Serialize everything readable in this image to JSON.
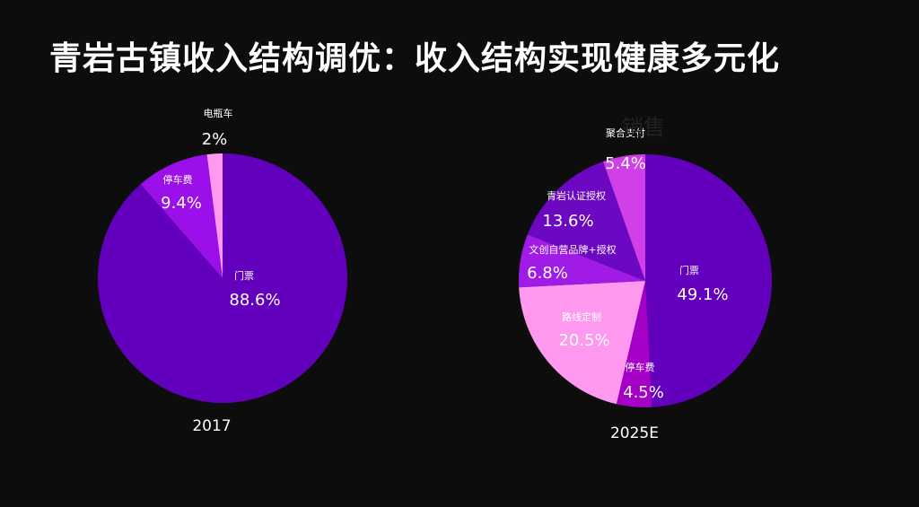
{
  "title": "青岩古镇收入结构调优：收入结构实现健康多元化",
  "stray_text": "销售",
  "colors": {
    "background": "#0d0d0d",
    "门票": "#6300bd",
    "停车费": "#9b10e8",
    "电瓶车": "#ff99f0",
    "路线定制": "#ff99f0",
    "停车费2025": "#a400c8",
    "文创自营品牌+授权": "#a01be6",
    "青岩认证授权": "#6d08c2",
    "聚合支付": "#d13fe8"
  },
  "chart_data": [
    {
      "type": "pie",
      "xlabel": "2017",
      "slices": [
        {
          "label": "门票",
          "value": 88.6,
          "value_label": "88.6%",
          "color": "#6300bd"
        },
        {
          "label": "停车费",
          "value": 9.4,
          "value_label": "9.4%",
          "color": "#9b10e8"
        },
        {
          "label": "电瓶车",
          "value": 2.0,
          "value_label": "2%",
          "color": "#ff99f0"
        }
      ]
    },
    {
      "type": "pie",
      "xlabel": "2025E",
      "slices": [
        {
          "label": "门票",
          "value": 49.1,
          "value_label": "49.1%",
          "color": "#6300bd"
        },
        {
          "label": "停车费",
          "value": 4.5,
          "value_label": "4.5%",
          "color": "#a400c8"
        },
        {
          "label": "路线定制",
          "value": 20.5,
          "value_label": "20.5%",
          "color": "#ff99f0"
        },
        {
          "label": "文创自营品牌+授权",
          "value": 6.8,
          "value_label": "6.8%",
          "color": "#a01be6"
        },
        {
          "label": "青岩认证授权",
          "value": 13.6,
          "value_label": "13.6%",
          "color": "#6d08c2"
        },
        {
          "label": "聚合支付",
          "value": 5.4,
          "value_label": "5.4%",
          "color": "#d13fe8"
        }
      ]
    }
  ]
}
